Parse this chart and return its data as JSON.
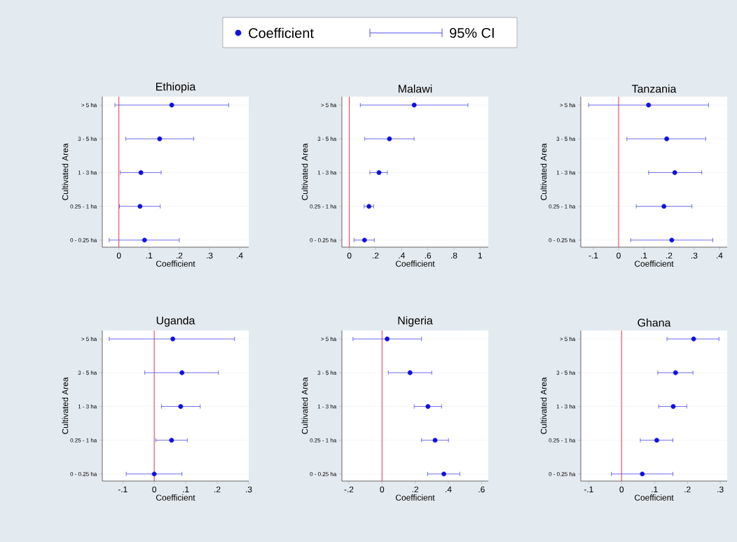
{
  "chart_data": [
    {
      "type": "scatter",
      "orientation": "horizontal",
      "title": "Ethiopia",
      "xlabel": "Coefficient",
      "ylabel": "Cultivated Area",
      "legend": "top",
      "annotations": [
        "95% CI"
      ],
      "marker": "circle",
      "grid": "y",
      "categories": [
        "> 5 ha",
        "3 - 5 ha",
        "1 - 3 ha",
        "0.25 - 1 ha",
        "0 - 0.25 ha"
      ],
      "series": [
        {
          "name": "Coefficient",
          "color": "#1010e0",
          "values": [
            0.175,
            0.135,
            0.073,
            0.07,
            0.085
          ],
          "errors": [
            [
              -0.013,
              0.364
            ],
            [
              0.023,
              0.248
            ],
            [
              0.005,
              0.14
            ],
            [
              0.002,
              0.137
            ],
            [
              -0.032,
              0.2
            ]
          ]
        }
      ],
      "ref_lines": [
        {
          "axis": "x",
          "value": 0,
          "color": "#e8304a"
        }
      ],
      "xlim": [
        -0.055,
        0.43
      ],
      "xticks": [
        0,
        {
          "value": 0.1,
          "label": ".1"
        },
        {
          "value": 0.2,
          "label": ".2"
        },
        {
          "value": 0.3,
          "label": ".3"
        },
        {
          "value": 0.4,
          "label": ".4"
        }
      ]
    },
    {
      "type": "scatter",
      "orientation": "horizontal",
      "title": "Malawi",
      "xlabel": "Coefficient",
      "ylabel": "Cultivated Area",
      "marker": "circle",
      "grid": "y",
      "categories": [
        "> 5 ha",
        "3 - 5 ha",
        "1 - 3 ha",
        "0.25 - 1 ha",
        "0 - 0.25 ha"
      ],
      "series": [
        {
          "color": "#1010e0",
          "values": [
            0.496,
            0.307,
            0.227,
            0.15,
            0.116
          ],
          "errors": [
            [
              0.084,
              0.907
            ],
            [
              0.118,
              0.495
            ],
            [
              0.157,
              0.291
            ],
            [
              0.113,
              0.186
            ],
            [
              0.036,
              0.191
            ]
          ]
        }
      ],
      "ref_lines": [
        {
          "axis": "x",
          "value": 0,
          "color": "#e8304a"
        }
      ],
      "xlim": [
        -0.057,
        1.063
      ],
      "xticks": [
        0,
        {
          "value": 0.2,
          "label": ".2"
        },
        {
          "value": 0.4,
          "label": ".4"
        },
        {
          "value": 0.6,
          "label": ".6"
        },
        {
          "value": 0.8,
          "label": ".8"
        },
        1
      ]
    },
    {
      "type": "scatter",
      "orientation": "horizontal",
      "title": "Tanzania",
      "xlabel": "Coefficient",
      "ylabel": "Cultivated Area",
      "marker": "circle",
      "grid": "y",
      "categories": [
        "> 5 ha",
        "3 - 5 ha",
        "1 - 3 ha",
        "0.25 - 1 ha",
        "0 - 0.25 ha"
      ],
      "series": [
        {
          "color": "#1010e0",
          "values": [
            0.119,
            0.191,
            0.223,
            0.18,
            0.211
          ],
          "errors": [
            [
              -0.119,
              0.357
            ],
            [
              0.033,
              0.346
            ],
            [
              0.119,
              0.33
            ],
            [
              0.07,
              0.291
            ],
            [
              0.048,
              0.374
            ]
          ]
        }
      ],
      "ref_lines": [
        {
          "axis": "x",
          "value": 0,
          "color": "#e8304a"
        }
      ],
      "xlim": [
        -0.15,
        0.431
      ],
      "xticks": [
        {
          "value": -0.1,
          "label": "-.1"
        },
        0,
        {
          "value": 0.1,
          "label": ".1"
        },
        {
          "value": 0.2,
          "label": ".2"
        },
        {
          "value": 0.3,
          "label": ".3"
        },
        {
          "value": 0.4,
          "label": ".4"
        }
      ]
    },
    {
      "type": "scatter",
      "orientation": "horizontal",
      "title": "Uganda",
      "xlabel": "Coefficient",
      "ylabel": "Cultivated Area",
      "marker": "circle",
      "grid": "y",
      "categories": [
        "> 5 ha",
        "3 - 5 ha",
        "1 - 3 ha",
        "0.25 - 1 ha",
        "0 - 0.25 ha"
      ],
      "series": [
        {
          "color": "#1010e0",
          "values": [
            0.059,
            0.088,
            0.084,
            0.055,
            0.0
          ],
          "errors": [
            [
              -0.143,
              0.255
            ],
            [
              -0.03,
              0.204
            ],
            [
              0.023,
              0.146
            ],
            [
              0.005,
              0.105
            ],
            [
              -0.089,
              0.088
            ]
          ]
        }
      ],
      "ref_lines": [
        {
          "axis": "x",
          "value": 0,
          "color": "#e8304a"
        }
      ],
      "xlim": [
        -0.165,
        0.3
      ],
      "xticks": [
        {
          "value": -0.1,
          "label": "-.1"
        },
        0,
        {
          "value": 0.1,
          "label": ".1"
        },
        {
          "value": 0.2,
          "label": ".2"
        },
        {
          "value": 0.3,
          "label": ".3"
        }
      ]
    },
    {
      "type": "scatter",
      "orientation": "horizontal",
      "title": "Nigeria",
      "xlabel": "Coefficient",
      "ylabel": "Cultivated Area",
      "marker": "circle",
      "grid": "y",
      "categories": [
        "> 5 ha",
        "3 - 5 ha",
        "1 - 3 ha",
        "0.25 - 1 ha",
        "0 - 0.25 ha"
      ],
      "series": [
        {
          "color": "#1010e0",
          "values": [
            0.031,
            0.169,
            0.277,
            0.32,
            0.373
          ],
          "errors": [
            [
              -0.175,
              0.238
            ],
            [
              0.038,
              0.3
            ],
            [
              0.194,
              0.359
            ],
            [
              0.238,
              0.401
            ],
            [
              0.275,
              0.469
            ]
          ]
        }
      ],
      "ref_lines": [
        {
          "axis": "x",
          "value": 0,
          "color": "#e8304a"
        }
      ],
      "xlim": [
        -0.242,
        0.641
      ],
      "xticks": [
        {
          "value": -0.2,
          "label": "-.2"
        },
        0,
        {
          "value": 0.2,
          "label": ".2"
        },
        {
          "value": 0.4,
          "label": ".4"
        },
        {
          "value": 0.6,
          "label": ".6"
        }
      ]
    },
    {
      "type": "scatter",
      "orientation": "horizontal",
      "title": "Ghana",
      "xlabel": "Coefficient",
      "ylabel": "Cultivated Area",
      "marker": "circle",
      "grid": "y",
      "categories": [
        "> 5 ha",
        "3 - 5 ha",
        "1 - 3 ha",
        "0.25 - 1 ha",
        "0 - 0.25 ha"
      ],
      "series": [
        {
          "color": "#1010e0",
          "values": [
            0.219,
            0.164,
            0.157,
            0.107,
            0.063
          ],
          "errors": [
            [
              0.138,
              0.296
            ],
            [
              0.11,
              0.217
            ],
            [
              0.113,
              0.198
            ],
            [
              0.057,
              0.156
            ],
            [
              -0.031,
              0.156
            ]
          ]
        }
      ],
      "ref_lines": [
        {
          "axis": "x",
          "value": 0,
          "color": "#e8304a"
        }
      ],
      "xlim": [
        -0.124,
        0.321
      ],
      "xticks": [
        {
          "value": -0.1,
          "label": "-.1"
        },
        0,
        {
          "value": 0.1,
          "label": ".1"
        },
        {
          "value": 0.2,
          "label": ".2"
        },
        {
          "value": 0.3,
          "label": ".3"
        }
      ]
    }
  ]
}
